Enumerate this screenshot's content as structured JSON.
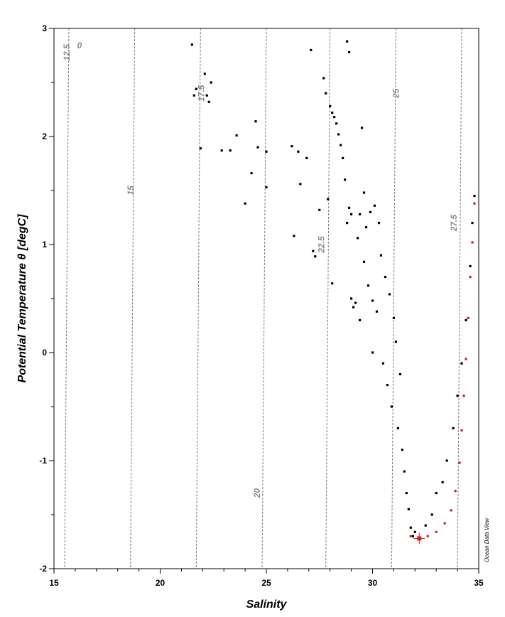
{
  "chart_data": {
    "type": "scatter",
    "title": "",
    "xlabel": "Salinity",
    "ylabel": "Potential Temperature θ [degC]",
    "xlim": [
      15,
      35
    ],
    "ylim": [
      -2,
      3
    ],
    "x_ticks": [
      15,
      20,
      25,
      30,
      35
    ],
    "y_ticks": [
      3,
      2,
      1,
      0,
      -1,
      -2
    ],
    "x_minor_step": 1,
    "y_minor_step": 0.5,
    "grid": false,
    "credit": "Ocean Data View",
    "isopycnals": [
      {
        "label": "0",
        "x_at_top": 15.8
      },
      {
        "label": "12.5",
        "x_at_top": 15.7
      },
      {
        "label": "15",
        "x_at_top": 18.8
      },
      {
        "label": "17.5",
        "x_at_top": 21.9
      },
      {
        "label": "20",
        "x_at_top": 25.0
      },
      {
        "label": "22.5",
        "x_at_top": 28.0
      },
      {
        "label": "25",
        "x_at_top": 31.1
      },
      {
        "label": "27.5",
        "x_at_top": 34.2
      }
    ],
    "series": [
      {
        "points": [
          [
            21.5,
            2.85
          ],
          [
            21.6,
            2.38
          ],
          [
            21.7,
            2.44
          ],
          [
            21.9,
            1.89
          ],
          [
            22.1,
            2.58
          ],
          [
            22.2,
            2.38
          ],
          [
            22.3,
            2.32
          ],
          [
            22.4,
            2.5
          ],
          [
            22.9,
            1.87
          ],
          [
            23.3,
            1.87
          ],
          [
            23.6,
            2.01
          ],
          [
            24.0,
            1.38
          ],
          [
            24.3,
            1.66
          ],
          [
            24.5,
            2.14
          ],
          [
            24.6,
            1.9
          ],
          [
            25.0,
            1.53
          ],
          [
            25.0,
            1.86
          ],
          [
            26.2,
            1.91
          ],
          [
            26.3,
            1.08
          ],
          [
            26.5,
            1.86
          ],
          [
            26.6,
            1.56
          ],
          [
            26.9,
            1.8
          ],
          [
            27.1,
            2.8
          ],
          [
            27.2,
            0.94
          ],
          [
            27.3,
            0.89
          ],
          [
            27.5,
            1.32
          ],
          [
            27.7,
            2.54
          ],
          [
            27.8,
            2.4
          ],
          [
            27.9,
            1.42
          ],
          [
            28.0,
            2.28
          ],
          [
            28.1,
            2.22
          ],
          [
            28.1,
            0.64
          ],
          [
            28.2,
            2.18
          ],
          [
            28.3,
            2.12
          ],
          [
            28.4,
            2.02
          ],
          [
            28.5,
            1.92
          ],
          [
            28.6,
            1.8
          ],
          [
            28.7,
            1.6
          ],
          [
            28.8,
            2.88
          ],
          [
            28.8,
            1.2
          ],
          [
            28.9,
            2.78
          ],
          [
            28.9,
            1.34
          ],
          [
            29.0,
            0.5
          ],
          [
            29.0,
            1.28
          ],
          [
            29.1,
            0.42
          ],
          [
            29.2,
            0.46
          ],
          [
            29.3,
            1.06
          ],
          [
            29.4,
            1.28
          ],
          [
            29.4,
            0.3
          ],
          [
            29.5,
            2.08
          ],
          [
            29.6,
            1.48
          ],
          [
            29.6,
            0.84
          ],
          [
            29.7,
            1.16
          ],
          [
            29.8,
            0.62
          ],
          [
            29.9,
            1.3
          ],
          [
            30.0,
            0.48
          ],
          [
            30.0,
            0.0
          ],
          [
            30.1,
            1.36
          ],
          [
            30.2,
            0.38
          ],
          [
            30.3,
            1.2
          ],
          [
            30.4,
            0.9
          ],
          [
            30.5,
            -0.1
          ],
          [
            30.6,
            0.7
          ],
          [
            30.7,
            -0.3
          ],
          [
            30.8,
            0.54
          ],
          [
            30.9,
            -0.5
          ],
          [
            31.0,
            0.32
          ],
          [
            31.1,
            0.1
          ],
          [
            31.2,
            -0.7
          ],
          [
            31.3,
            -0.2
          ],
          [
            31.4,
            -0.9
          ],
          [
            31.5,
            -1.1
          ],
          [
            31.6,
            -1.3
          ],
          [
            31.7,
            -1.45
          ],
          [
            31.8,
            -1.62
          ],
          [
            31.9,
            -1.7
          ],
          [
            32.0,
            -1.66
          ],
          [
            32.2,
            -1.72
          ],
          [
            32.5,
            -1.6
          ],
          [
            32.8,
            -1.5
          ],
          [
            33.0,
            -1.3
          ],
          [
            33.3,
            -1.2
          ],
          [
            33.5,
            -1.0
          ],
          [
            33.8,
            -0.7
          ],
          [
            34.0,
            -0.4
          ],
          [
            34.2,
            -0.1
          ],
          [
            34.4,
            0.3
          ],
          [
            34.6,
            0.8
          ],
          [
            34.7,
            1.2
          ],
          [
            34.8,
            1.45
          ]
        ]
      },
      {
        "color": "#d41f1f",
        "points": [
          [
            31.8,
            -1.7
          ],
          [
            32.2,
            -1.72
          ],
          [
            32.6,
            -1.7
          ],
          [
            33.0,
            -1.66
          ],
          [
            33.4,
            -1.58
          ],
          [
            33.7,
            -1.46
          ],
          [
            33.9,
            -1.28
          ],
          [
            34.1,
            -1.02
          ],
          [
            34.2,
            -0.72
          ],
          [
            34.3,
            -0.4
          ],
          [
            34.4,
            -0.06
          ],
          [
            34.5,
            0.32
          ],
          [
            34.6,
            0.7
          ],
          [
            34.7,
            1.02
          ],
          [
            34.8,
            1.38
          ]
        ]
      }
    ],
    "marker": {
      "x": 32.2,
      "y": -1.72,
      "color": "#d41f1f"
    }
  }
}
